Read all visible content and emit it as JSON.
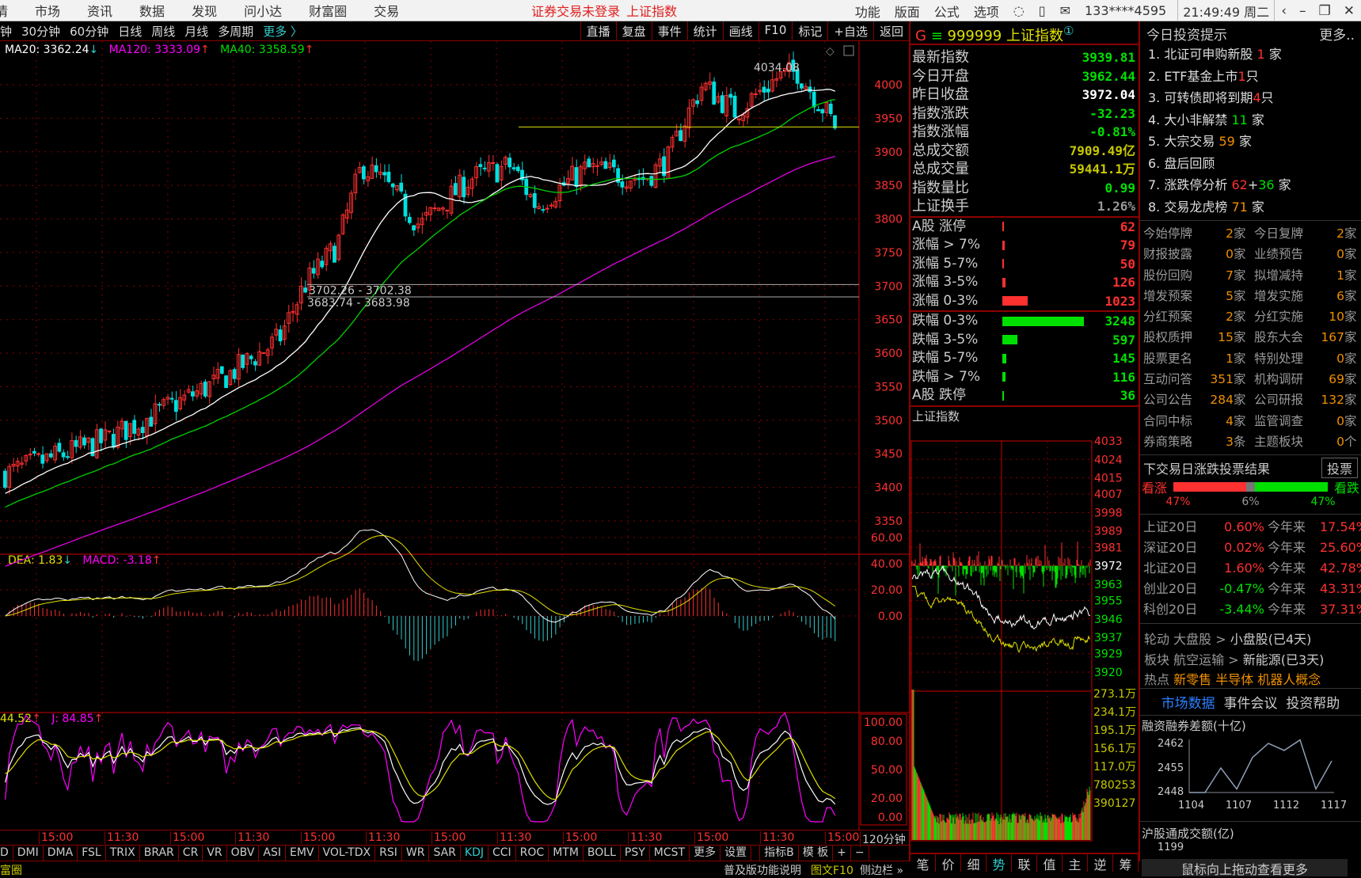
{
  "menu": {
    "items": [
      "情",
      "市场",
      "资讯",
      "数据",
      "发现",
      "问小达",
      "财富圈",
      "交易"
    ],
    "login_warning": "证券交易未登录",
    "index_name": "上证指数",
    "right_items": [
      "功能",
      "版面",
      "公式",
      "选项"
    ],
    "icons": [
      "refresh-icon",
      "phone-icon",
      "mail-icon"
    ],
    "user": "133****4595",
    "clock": "21:49:49 周二",
    "window": [
      "‹",
      "–",
      "❐",
      "✕"
    ]
  },
  "toolbar": {
    "periods": [
      "钟",
      "30分钟",
      "60分钟",
      "日线",
      "周线",
      "月线",
      "多周期"
    ],
    "more": "更多 〉",
    "actions": [
      "直播",
      "复盘",
      "事件",
      "统计",
      "画线",
      "F10",
      "标记",
      "+自选",
      "返回"
    ]
  },
  "main_chart": {
    "legend": {
      "ma20": "MA20: 3362.24",
      "ma20_dir": "↓",
      "ma120": "MA120: 3333.09",
      "ma120_dir": "↑",
      "ma40": "MA40: 3358.59",
      "ma40_dir": "↑"
    },
    "price_axis": [
      "4000",
      "3950",
      "3900",
      "3850",
      "3800",
      "3750",
      "3700",
      "3650",
      "3600",
      "3550",
      "3500",
      "3450",
      "3400",
      "3350"
    ],
    "high_label": "4034.08",
    "range_labels": [
      "3702.26 - 3702.38",
      "3683.74 - 3683.98"
    ],
    "yellow_line": 3937,
    "gray_lines": [
      3702.3,
      3683.9
    ],
    "price_path": [
      [
        0,
        3420
      ],
      [
        0.12,
        3470
      ],
      [
        0.26,
        3560
      ],
      [
        0.33,
        3620
      ],
      [
        0.36,
        3700
      ],
      [
        0.4,
        3760
      ],
      [
        0.43,
        3880
      ],
      [
        0.46,
        3850
      ],
      [
        0.5,
        3790
      ],
      [
        0.56,
        3860
      ],
      [
        0.61,
        3880
      ],
      [
        0.64,
        3820
      ],
      [
        0.7,
        3875
      ],
      [
        0.77,
        3860
      ],
      [
        0.8,
        3890
      ],
      [
        0.82,
        3950
      ],
      [
        0.84,
        4000
      ],
      [
        0.88,
        3960
      ],
      [
        0.93,
        4010
      ],
      [
        0.955,
        4020
      ],
      [
        1,
        3940
      ]
    ],
    "candle_count": 200,
    "colors": {
      "up": "#ff3030",
      "down": "#00e0e0",
      "ma20": "#ffffff",
      "ma40": "#00d000",
      "ma120": "#e000e0",
      "grid": "#8b0000"
    }
  },
  "macd": {
    "legend": {
      "dea": "DEA: 1.83",
      "dea_dir": "↓",
      "macd": "MACD: -3.18",
      "macd_dir": "↑"
    },
    "axis": [
      "60.00",
      "40.00",
      "20.00",
      "0.00"
    ]
  },
  "kdj": {
    "legend": {
      "d": "44.52",
      "d_dir": "↑",
      "j": "J: 84.85",
      "j_dir": "↑"
    },
    "axis": [
      "100.00",
      "80.00",
      "50.00",
      "20.00",
      "0.00"
    ]
  },
  "time_axis": {
    "labels": [
      "15:00",
      "11:30",
      "15:00",
      "11:30",
      "15:00",
      "11:30",
      "15:00",
      "11:30",
      "15:00",
      "11:30",
      "15:00",
      "11:30",
      "15:00"
    ],
    "period": "120分钟"
  },
  "indicator_tabs": [
    "D",
    "DMI",
    "DMA",
    "FSL",
    "TRIX",
    "BRAR",
    "CR",
    "VR",
    "OBV",
    "ASI",
    "EMV",
    "VOL-TDX",
    "RSI",
    "WR",
    "SAR",
    "KDJ",
    "CCI",
    "ROC",
    "MTM",
    "BOLL",
    "PSY",
    "MCST",
    "更多",
    "设置",
    "",
    "指标B",
    "模 板",
    "+",
    "−"
  ],
  "indicator_active": "KDJ",
  "quote": {
    "prefix": "G",
    "code": "999999",
    "name": "上证指数",
    "badge": "①",
    "rows": [
      {
        "label": "最新指数",
        "value": "3939.81",
        "color": "grn"
      },
      {
        "label": "今日开盘",
        "value": "3962.44",
        "color": "grn"
      },
      {
        "label": "昨日收盘",
        "value": "3972.04",
        "color": "wht"
      },
      {
        "label": "指数涨跌",
        "value": "-32.23",
        "color": "grn"
      },
      {
        "label": "指数涨幅",
        "value": "-0.81%",
        "color": "grn"
      },
      {
        "label": "总成交额",
        "value": "7909.49亿",
        "color": "dyel"
      },
      {
        "label": "总成交量",
        "value": "59441.1万",
        "color": "dyel"
      },
      {
        "label": "指数量比",
        "value": "0.99",
        "color": "grn"
      },
      {
        "label": "上证换手",
        "value": "1.26%",
        "color": "gry"
      }
    ],
    "up": [
      {
        "label": "A股 涨停",
        "value": "62"
      },
      {
        "label": "涨幅 > 7%",
        "value": "79"
      },
      {
        "label": "涨幅 5-7%",
        "value": "50"
      },
      {
        "label": "涨幅 3-5%",
        "value": "126"
      },
      {
        "label": "涨幅 0-3%",
        "value": "1023"
      }
    ],
    "down": [
      {
        "label": "跌幅 0-3%",
        "value": "3248"
      },
      {
        "label": "跌幅 3-5%",
        "value": "597"
      },
      {
        "label": "跌幅 5-7%",
        "value": "145"
      },
      {
        "label": "跌幅 > 7%",
        "value": "116"
      },
      {
        "label": "A股 跌停",
        "value": "36"
      }
    ]
  },
  "intraday": {
    "title": "上证指数",
    "price_axis": [
      "4033",
      "4024",
      "4015",
      "4007",
      "3998",
      "3989",
      "3981",
      "3972",
      "3963",
      "3955",
      "3946",
      "3937",
      "3929",
      "3920"
    ],
    "prev_close": 3972,
    "volume_axis": [
      "273.1万",
      "234.1万",
      "195.1万",
      "156.1万",
      "117.0万",
      "780253",
      "390127"
    ],
    "tabs": [
      "笔",
      "价",
      "细",
      "势",
      "联",
      "值",
      "主",
      "逆",
      "筹"
    ],
    "active_tab": "势"
  },
  "tips": {
    "title": "今日投资提示",
    "more": "更多..",
    "items": [
      [
        "1. 北证可申购新股 ",
        "1",
        "red",
        " 家"
      ],
      [
        "2. ETF基金上市",
        "1",
        "red",
        "只"
      ],
      [
        "3. 可转债即将到期",
        "4",
        "red",
        "只"
      ],
      [
        "4. 大小非解禁 ",
        "11",
        "grn",
        " 家"
      ],
      [
        "5. 大宗交易 ",
        "59",
        "org",
        " 家"
      ],
      [
        "6. 盘后回顾",
        "",
        "",
        ""
      ],
      [
        "7. 涨跌停分析 ",
        "62",
        "red",
        "+"
      ],
      [
        "8. 交易龙虎榜 ",
        "71",
        "org",
        " 家"
      ]
    ],
    "item7_extra": "36",
    "item7_unit": " 家",
    "stats": [
      [
        "今始停牌",
        "2",
        "家",
        "今日复牌",
        "2",
        "家"
      ],
      [
        "财报披露",
        "0",
        "家",
        "业绩预告",
        "0",
        "家"
      ],
      [
        "股份回购",
        "7",
        "家",
        "拟增减持",
        "1",
        "家"
      ],
      [
        "增发预案",
        "5",
        "家",
        "增发实施",
        "6",
        "家"
      ],
      [
        "分红预案",
        "2",
        "家",
        "分红实施",
        "10",
        "家"
      ],
      [
        "股权质押",
        "15",
        "家",
        "股东大会",
        "167",
        "家"
      ],
      [
        "股票更名",
        "1",
        "家",
        "特别处理",
        "0",
        "家"
      ],
      [
        "互动问答",
        "351",
        "家",
        "机构调研",
        "69",
        "家"
      ],
      [
        "公司公告",
        "284",
        "家",
        "公司研报",
        "132",
        "家"
      ],
      [
        "合同中标",
        "4",
        "家",
        "监管调查",
        "0",
        "家"
      ],
      [
        "券商策略",
        "3",
        "条",
        "主题板块",
        "0",
        "个"
      ]
    ]
  },
  "vote": {
    "title": "下交易日涨跌投票结果",
    "button": "投票",
    "bull": "看涨",
    "bear": "看跌",
    "bull_pct": 47,
    "flat_pct": 6,
    "bear_pct": 47,
    "bull_label": "47%",
    "flat_label": "6%",
    "bear_label": "47%"
  },
  "indices": [
    [
      "上证20日",
      "0.60%",
      "red",
      "今年来",
      "17.54%"
    ],
    [
      "深证20日",
      "0.02%",
      "red",
      "今年来",
      "25.60%"
    ],
    [
      "北证20日",
      "1.60%",
      "red",
      "今年来",
      "42.78%"
    ],
    [
      "创业20日",
      "-0.47%",
      "grn",
      "今年来",
      "43.31%"
    ],
    [
      "科创20日",
      "-3.44%",
      "grn",
      "今年来",
      "37.31%"
    ]
  ],
  "rotation": {
    "l1": "轮动",
    "a1": "大盘股 > ",
    "b1": "小盘股(已4天)",
    "l2": "板块",
    "a2": "航空运输 > ",
    "b2": "新能源(已3天)",
    "l3": "热点",
    "hot": "新零售 半导体 机器人概念"
  },
  "section_tabs": [
    "市场数据",
    "事件会议",
    "投资帮助"
  ],
  "margin": {
    "title": "融资融券差额(十亿)",
    "yticks": [
      "2462",
      "2455",
      "2448"
    ],
    "xticks": [
      "1104",
      "1107",
      "1112",
      "1117"
    ],
    "values": [
      2448,
      2448,
      2455,
      2449,
      2458,
      2462,
      2460,
      2463,
      2449,
      2457
    ]
  },
  "hk": {
    "title": "沪股通成交额(亿)",
    "ytick": "1199",
    "hint": "鼠标向上拖动查看更多"
  },
  "status": {
    "left": "富圈",
    "items": [
      "普及版功能说明",
      "图文F10",
      "侧边栏 »"
    ]
  }
}
